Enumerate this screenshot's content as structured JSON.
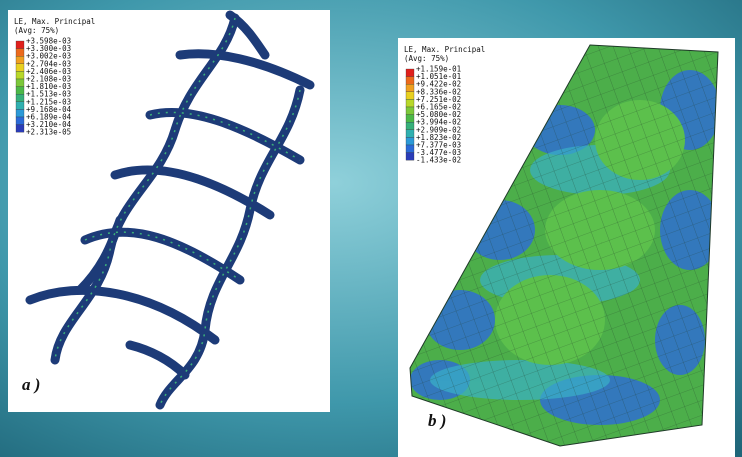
{
  "panels": [
    {
      "legend": {
        "title": "LE, Max. Principal",
        "subtitle": "(Avg: 75%)",
        "entries": [
          "+3.598e-03",
          "+3.300e-03",
          "+3.002e-03",
          "+2.704e-03",
          "+2.406e-03",
          "+2.108e-03",
          "+1.810e-03",
          "+1.513e-03",
          "+1.215e-03",
          "+9.168e-04",
          "+6.189e-04",
          "+3.210e-04",
          "+2.313e-05"
        ]
      },
      "label": "a )"
    },
    {
      "legend": {
        "title": "LE, Max. Principal",
        "subtitle": "(Avg: 75%)",
        "entries": [
          "+1.159e-01",
          "+1.051e-01",
          "+9.422e-02",
          "+8.336e-02",
          "+7.251e-02",
          "+6.165e-02",
          "+5.080e-02",
          "+3.994e-02",
          "+2.909e-02",
          "+1.823e-02",
          "+7.377e-03",
          "-3.477e-03",
          "-1.433e-02"
        ]
      },
      "label": "b )"
    }
  ]
}
